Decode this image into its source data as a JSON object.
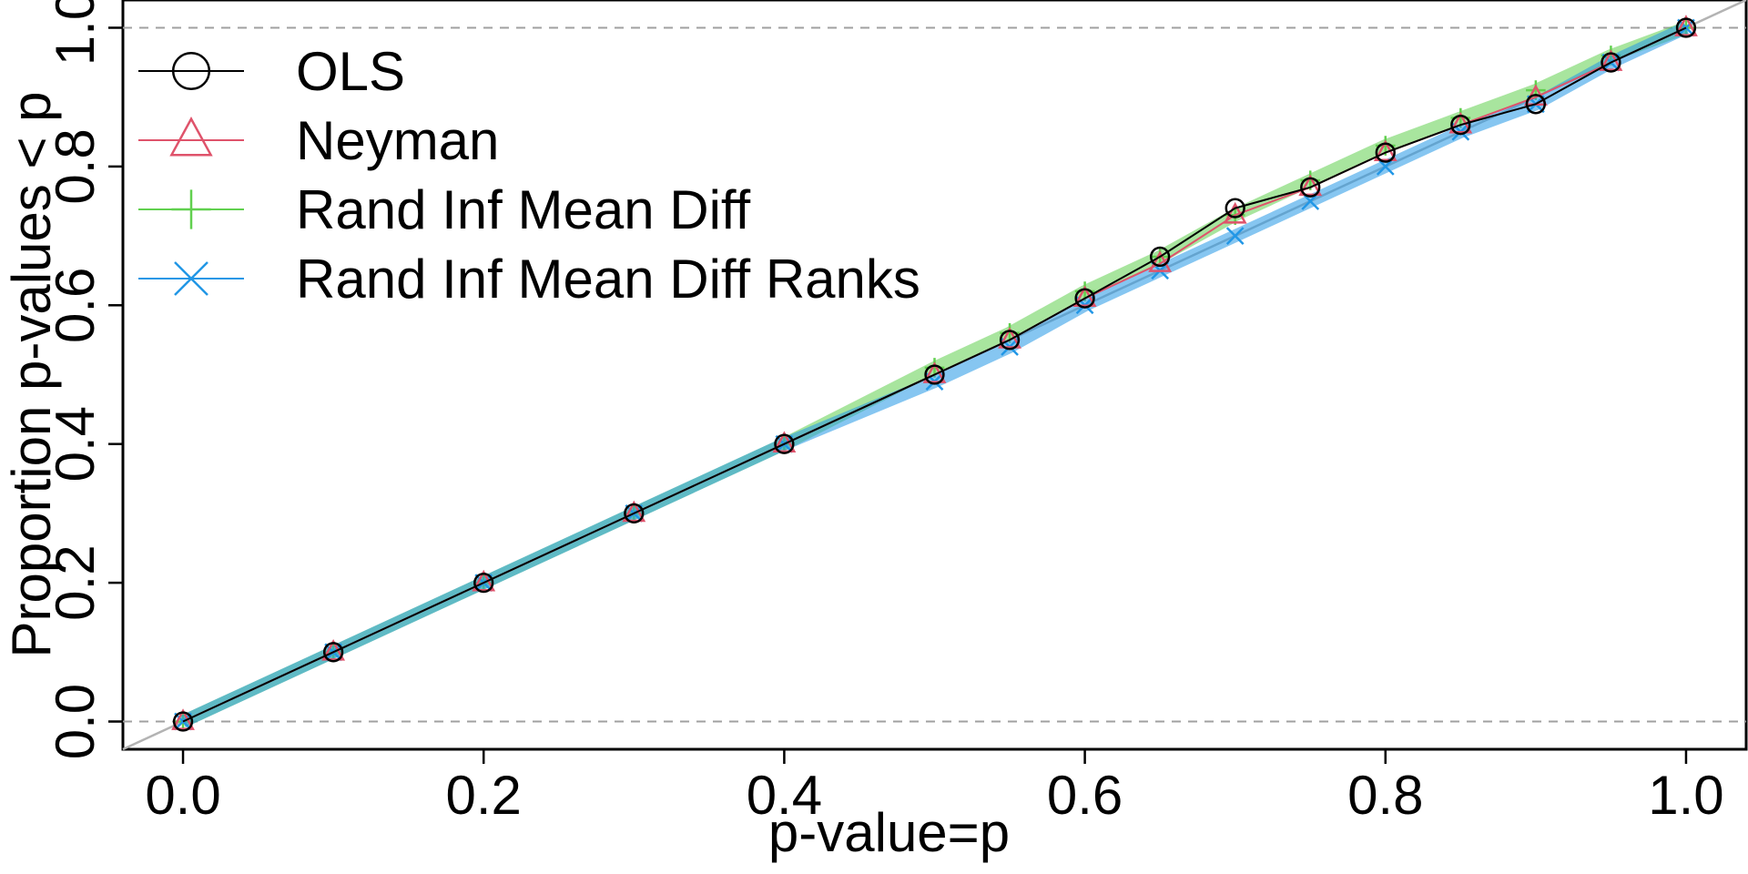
{
  "chart_data": {
    "type": "line",
    "xlabel": "p-value=p",
    "ylabel": "Proportion p-values < p",
    "xlim": [
      -0.04,
      1.04
    ],
    "ylim": [
      -0.04,
      1.04
    ],
    "x_ticks": [
      0.0,
      0.2,
      0.4,
      0.6,
      0.8,
      1.0
    ],
    "y_ticks": [
      0.0,
      0.2,
      0.4,
      0.6,
      0.8,
      1.0
    ],
    "x_tick_labels": [
      "0.0",
      "0.2",
      "0.4",
      "0.6",
      "0.8",
      "1.0"
    ],
    "y_tick_labels": [
      "0.0",
      "0.2",
      "0.4",
      "0.6",
      "0.8",
      "1.0"
    ],
    "reference_lines": {
      "diagonal": {
        "from": [
          -0.04,
          -0.04
        ],
        "to": [
          1.04,
          1.04
        ],
        "color": "#b3b3b3"
      },
      "horizontal_dashed": [
        0.0,
        1.0
      ]
    },
    "legend_position": "top-left",
    "series": [
      {
        "name": "OLS",
        "color": "#000000",
        "marker": "circle",
        "x": [
          0.0,
          0.1,
          0.2,
          0.3,
          0.4,
          0.5,
          0.55,
          0.6,
          0.65,
          0.7,
          0.75,
          0.8,
          0.85,
          0.9,
          0.95,
          1.0
        ],
        "y": [
          0.0,
          0.1,
          0.2,
          0.3,
          0.4,
          0.5,
          0.55,
          0.61,
          0.67,
          0.74,
          0.77,
          0.82,
          0.86,
          0.89,
          0.95,
          1.0
        ]
      },
      {
        "name": "Neyman",
        "color": "#df536b",
        "marker": "triangle",
        "x": [
          0.0,
          0.1,
          0.2,
          0.3,
          0.4,
          0.5,
          0.55,
          0.6,
          0.65,
          0.7,
          0.75,
          0.8,
          0.85,
          0.9,
          0.95,
          1.0
        ],
        "y": [
          0.0,
          0.1,
          0.2,
          0.3,
          0.4,
          0.5,
          0.55,
          0.61,
          0.66,
          0.73,
          0.77,
          0.82,
          0.86,
          0.9,
          0.95,
          1.0
        ]
      },
      {
        "name": "Rand Inf Mean Diff",
        "color": "#61d04f",
        "marker": "plus",
        "x": [
          0.0,
          0.1,
          0.2,
          0.3,
          0.4,
          0.5,
          0.55,
          0.6,
          0.65,
          0.7,
          0.75,
          0.8,
          0.85,
          0.9,
          0.95,
          1.0
        ],
        "y": [
          0.0,
          0.1,
          0.2,
          0.3,
          0.4,
          0.51,
          0.56,
          0.62,
          0.67,
          0.73,
          0.78,
          0.83,
          0.87,
          0.91,
          0.96,
          1.0
        ]
      },
      {
        "name": "Rand Inf Mean Diff Ranks",
        "color": "#2297e6",
        "marker": "cross",
        "x": [
          0.0,
          0.1,
          0.2,
          0.3,
          0.4,
          0.5,
          0.55,
          0.6,
          0.65,
          0.7,
          0.75,
          0.8,
          0.85,
          0.9,
          0.95,
          1.0
        ],
        "y": [
          0.0,
          0.1,
          0.2,
          0.3,
          0.4,
          0.49,
          0.54,
          0.6,
          0.65,
          0.7,
          0.75,
          0.8,
          0.85,
          0.89,
          0.95,
          1.0
        ]
      }
    ]
  }
}
